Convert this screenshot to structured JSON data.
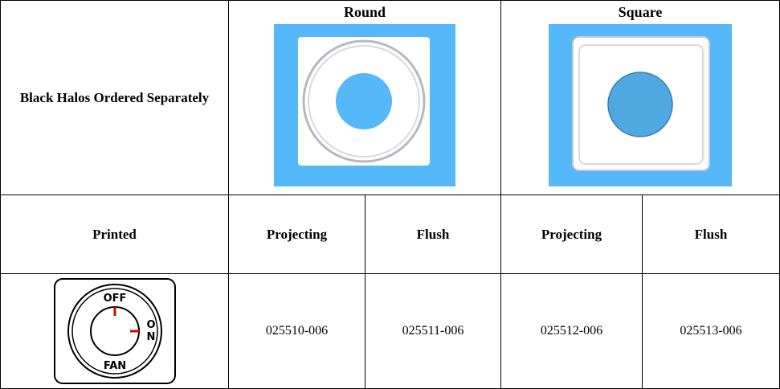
{
  "table": {
    "corner": "Black Halos Ordered Separately",
    "groups": [
      "Round",
      "Square"
    ],
    "subheader": [
      "Printed",
      "Projecting",
      "Flush",
      "Projecting",
      "Flush"
    ],
    "rows": [
      {
        "icon": {
          "top": "OFF",
          "right": "ON",
          "bottom": "FAN"
        },
        "cells": [
          "025510-006",
          "025511-006",
          "025512-006",
          "025513-006"
        ]
      }
    ]
  }
}
